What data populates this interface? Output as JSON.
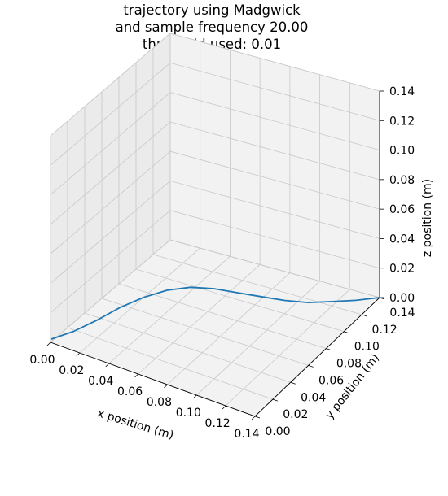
{
  "chart_data": {
    "type": "line",
    "projection": "3d",
    "title": [
      "trajectory using Madgwick",
      "and sample frequency 20.00",
      "threshold used: 0.01"
    ],
    "xlabel": "x position (m)",
    "ylabel": "y position (m)",
    "zlabel": "z position (m)",
    "xlim": [
      0,
      0.14
    ],
    "ylim": [
      0,
      0.14
    ],
    "zlim": [
      0,
      0.14
    ],
    "ticks": [
      "0.00",
      "0.02",
      "0.04",
      "0.06",
      "0.08",
      "0.10",
      "0.12",
      "0.14"
    ],
    "grid": true,
    "series": [
      {
        "color": "#1f77b4",
        "x": [
          0.0,
          0.01,
          0.02,
          0.03,
          0.04,
          0.05,
          0.06,
          0.07,
          0.08,
          0.09,
          0.1,
          0.11,
          0.12,
          0.13,
          0.14
        ],
        "y": [
          0.0,
          0.01,
          0.02,
          0.03,
          0.04,
          0.05,
          0.06,
          0.07,
          0.08,
          0.09,
          0.1,
          0.11,
          0.12,
          0.13,
          0.14
        ],
        "z": [
          0.002,
          0.006,
          0.012,
          0.019,
          0.024,
          0.027,
          0.027,
          0.024,
          0.019,
          0.014,
          0.009,
          0.005,
          0.003,
          0.001,
          0.0
        ]
      }
    ]
  }
}
